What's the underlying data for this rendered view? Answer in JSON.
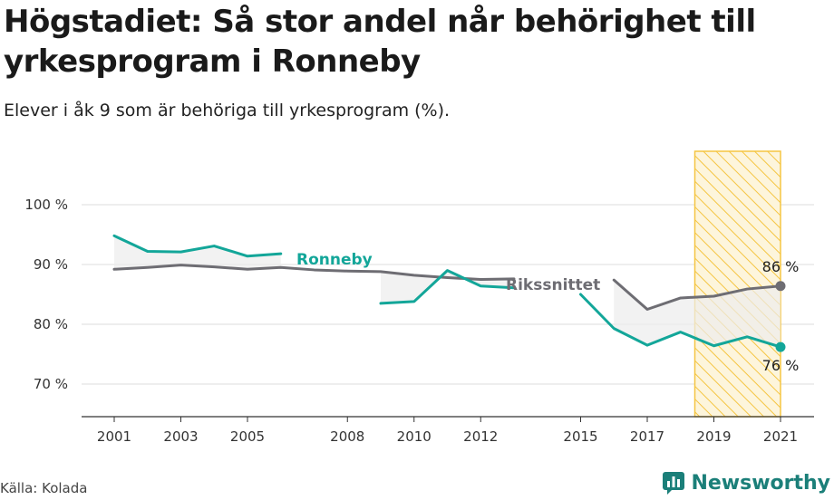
{
  "title": "Högstadiet: Så stor andel når behörighet till yrkesprogram i Ronneby",
  "subtitle": "Elever i åk 9 som är behöriga till yrkesprogram (%).",
  "source": "Källa: Kolada",
  "brand": "Newsworthy",
  "colors": {
    "ronneby": "#13a699",
    "rikssnittet": "#6e6d73",
    "highlight_stroke": "#f5c542",
    "fill": "#ececec"
  },
  "chart_data": {
    "type": "line",
    "x": [
      2001,
      2002,
      2003,
      2004,
      2005,
      2006,
      2007,
      2008,
      2009,
      2010,
      2011,
      2012,
      2013,
      2014,
      2015,
      2016,
      2017,
      2018,
      2019,
      2020,
      2021
    ],
    "x_ticks": [
      "2001",
      "2003",
      "2005",
      "2008",
      "2010",
      "2012",
      "2015",
      "2017",
      "2019",
      "2021"
    ],
    "y_ticks": [
      "100 %",
      "90 %",
      "80 %",
      "70 %"
    ],
    "ylim": [
      65,
      105
    ],
    "series": [
      {
        "name": "Ronneby",
        "values": [
          94.8,
          92.2,
          92.1,
          93.1,
          91.4,
          91.8,
          null,
          null,
          83.5,
          83.8,
          89.0,
          86.4,
          86.1,
          null,
          85.0,
          79.3,
          76.5,
          78.7,
          76.4,
          77.9,
          76.2
        ]
      },
      {
        "name": "Rikssnittet",
        "values": [
          89.2,
          89.5,
          89.9,
          89.6,
          89.2,
          89.5,
          89.1,
          88.9,
          88.8,
          88.2,
          87.8,
          87.5,
          87.6,
          null,
          null,
          87.4,
          82.5,
          84.4,
          84.7,
          85.9,
          86.4
        ]
      }
    ],
    "highlight_range": [
      2019,
      2021
    ],
    "end_labels": {
      "rikssnittet": "86 %",
      "ronneby": "76 %"
    },
    "grid": true
  }
}
